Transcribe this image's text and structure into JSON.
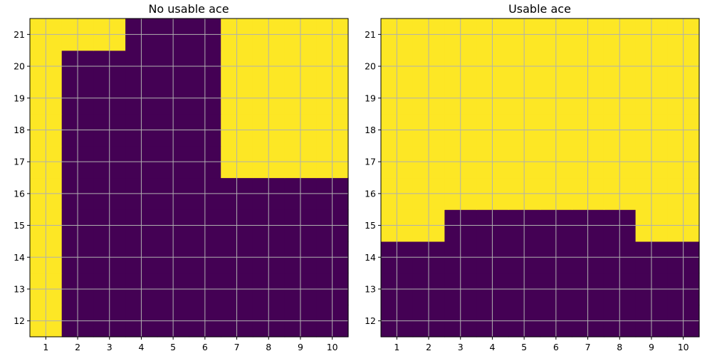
{
  "chart_data": [
    {
      "type": "heatmap",
      "title": "No usable ace",
      "xlabel": "",
      "ylabel": "",
      "x_categories": [
        1,
        2,
        3,
        4,
        5,
        6,
        7,
        8,
        9,
        10
      ],
      "y_categories": [
        12,
        13,
        14,
        15,
        16,
        17,
        18,
        19,
        20,
        21
      ],
      "value_colors": {
        "0": "#440154",
        "1": "#fde725"
      },
      "grid": true,
      "values": [
        [
          1,
          0,
          0,
          0,
          0,
          0,
          0,
          0,
          0,
          0
        ],
        [
          1,
          0,
          0,
          0,
          0,
          0,
          0,
          0,
          0,
          0
        ],
        [
          1,
          0,
          0,
          0,
          0,
          0,
          0,
          0,
          0,
          0
        ],
        [
          1,
          0,
          0,
          0,
          0,
          0,
          0,
          0,
          0,
          0
        ],
        [
          1,
          0,
          0,
          0,
          0,
          0,
          0,
          0,
          0,
          0
        ],
        [
          1,
          0,
          0,
          0,
          0,
          0,
          1,
          1,
          1,
          1
        ],
        [
          1,
          0,
          0,
          0,
          0,
          0,
          1,
          1,
          1,
          1
        ],
        [
          1,
          0,
          0,
          0,
          0,
          0,
          1,
          1,
          1,
          1
        ],
        [
          1,
          0,
          0,
          0,
          0,
          0,
          1,
          1,
          1,
          1
        ],
        [
          1,
          1,
          1,
          0,
          0,
          0,
          1,
          1,
          1,
          1
        ]
      ]
    },
    {
      "type": "heatmap",
      "title": "Usable ace",
      "xlabel": "",
      "ylabel": "",
      "x_categories": [
        1,
        2,
        3,
        4,
        5,
        6,
        7,
        8,
        9,
        10
      ],
      "y_categories": [
        12,
        13,
        14,
        15,
        16,
        17,
        18,
        19,
        20,
        21
      ],
      "value_colors": {
        "0": "#440154",
        "1": "#fde725"
      },
      "grid": true,
      "values": [
        [
          0,
          0,
          0,
          0,
          0,
          0,
          0,
          0,
          0,
          0
        ],
        [
          0,
          0,
          0,
          0,
          0,
          0,
          0,
          0,
          0,
          0
        ],
        [
          0,
          0,
          0,
          0,
          0,
          0,
          0,
          0,
          0,
          0
        ],
        [
          1,
          1,
          0,
          0,
          0,
          0,
          0,
          0,
          1,
          1
        ],
        [
          1,
          1,
          1,
          1,
          1,
          1,
          1,
          1,
          1,
          1
        ],
        [
          1,
          1,
          1,
          1,
          1,
          1,
          1,
          1,
          1,
          1
        ],
        [
          1,
          1,
          1,
          1,
          1,
          1,
          1,
          1,
          1,
          1
        ],
        [
          1,
          1,
          1,
          1,
          1,
          1,
          1,
          1,
          1,
          1
        ],
        [
          1,
          1,
          1,
          1,
          1,
          1,
          1,
          1,
          1,
          1
        ],
        [
          1,
          1,
          1,
          1,
          1,
          1,
          1,
          1,
          1,
          1
        ]
      ]
    }
  ]
}
